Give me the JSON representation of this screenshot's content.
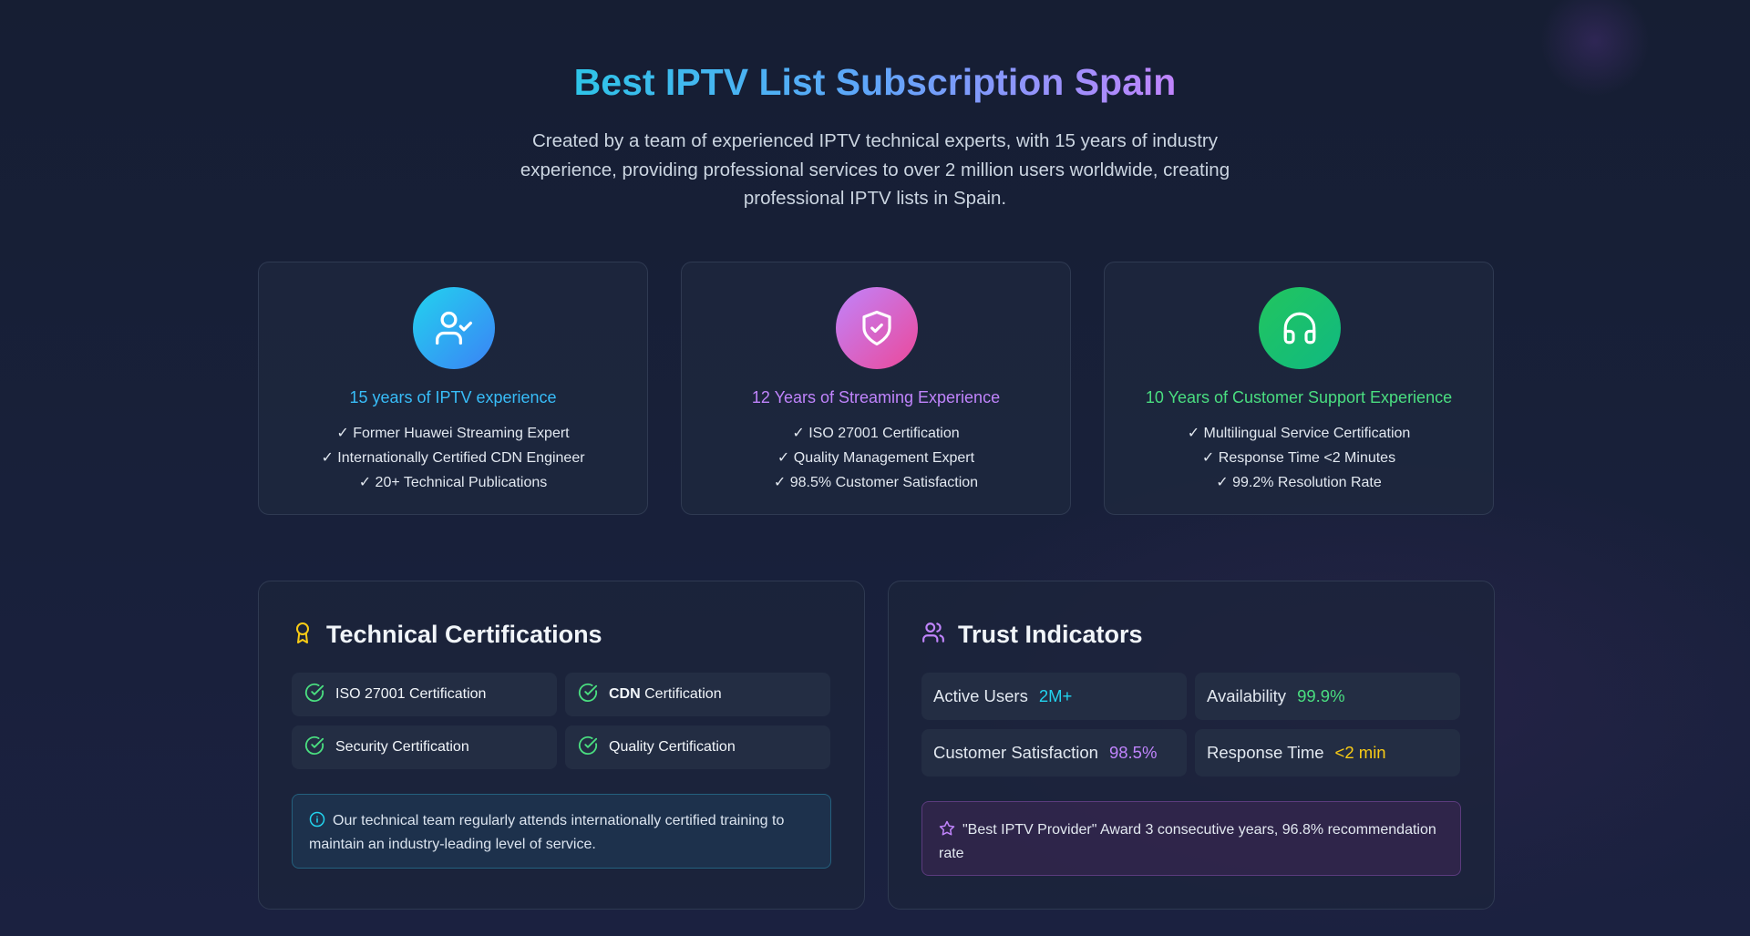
{
  "hero": {
    "title": "Best IPTV List Subscription Spain",
    "subtitle": "Created by a team of experienced IPTV technical experts, with 15 years of industry experience, providing professional services to over 2 million users worldwide, creating professional IPTV lists in Spain."
  },
  "experience_cards": [
    {
      "icon": "user-check-icon",
      "title": "15 years of IPTV experience",
      "color": "#38bdf8",
      "gradient": [
        "#22d3ee",
        "#3b82f6"
      ],
      "items": [
        "✓ Former Huawei Streaming Expert",
        "✓ Internationally Certified CDN Engineer",
        "✓ 20+ Technical Publications"
      ]
    },
    {
      "icon": "shield-check-icon",
      "title": "12 Years of Streaming Experience",
      "color": "#c084fc",
      "gradient": [
        "#c084fc",
        "#ec4899"
      ],
      "items": [
        "✓ ISO 27001 Certification",
        "✓ Quality Management Expert",
        "✓ 98.5% Customer Satisfaction"
      ]
    },
    {
      "icon": "headphones-icon",
      "title": "10 Years of Customer Support Experience",
      "color": "#4ade80",
      "gradient": [
        "#22c55e",
        "#10b981"
      ],
      "items": [
        "✓ Multilingual Service Certification",
        "✓ Response Time <2 Minutes",
        "✓ 99.2% Resolution Rate"
      ]
    }
  ],
  "certifications": {
    "icon": "award-icon",
    "title": "Technical Certifications",
    "items": [
      {
        "icon": "check-circle-icon",
        "label": "ISO 27001 Certification"
      },
      {
        "icon": "check-circle-icon",
        "label_strong": "CDN",
        "label": " Certification"
      },
      {
        "icon": "check-circle-icon",
        "label": "Security Certification"
      },
      {
        "icon": "check-circle-icon",
        "label": "Quality Certification"
      }
    ],
    "notice": {
      "icon": "info-icon",
      "text": "Our technical team regularly attends internationally certified training to maintain an industry-leading level of service."
    }
  },
  "trust": {
    "icon": "users-icon",
    "title": "Trust Indicators",
    "stats": [
      {
        "label": "Active Users",
        "value": "2M+",
        "color": "#22d3ee"
      },
      {
        "label": "Availability",
        "value": "99.9%",
        "color": "#4ade80"
      },
      {
        "label": "Customer Satisfaction",
        "value": "98.5%",
        "color": "#c084fc"
      },
      {
        "label": "Response Time",
        "value": "<2 min",
        "color": "#facc15"
      }
    ],
    "award": {
      "icon": "star-icon",
      "text": "\"Best IPTV Provider\" Award 3 consecutive years, 96.8% recommendation rate"
    }
  },
  "colors": {
    "cert_check": "#4ade80",
    "cert_award": "#facc15",
    "trust_users": "#c084fc",
    "info": "#22d3ee",
    "star": "#c084fc"
  }
}
